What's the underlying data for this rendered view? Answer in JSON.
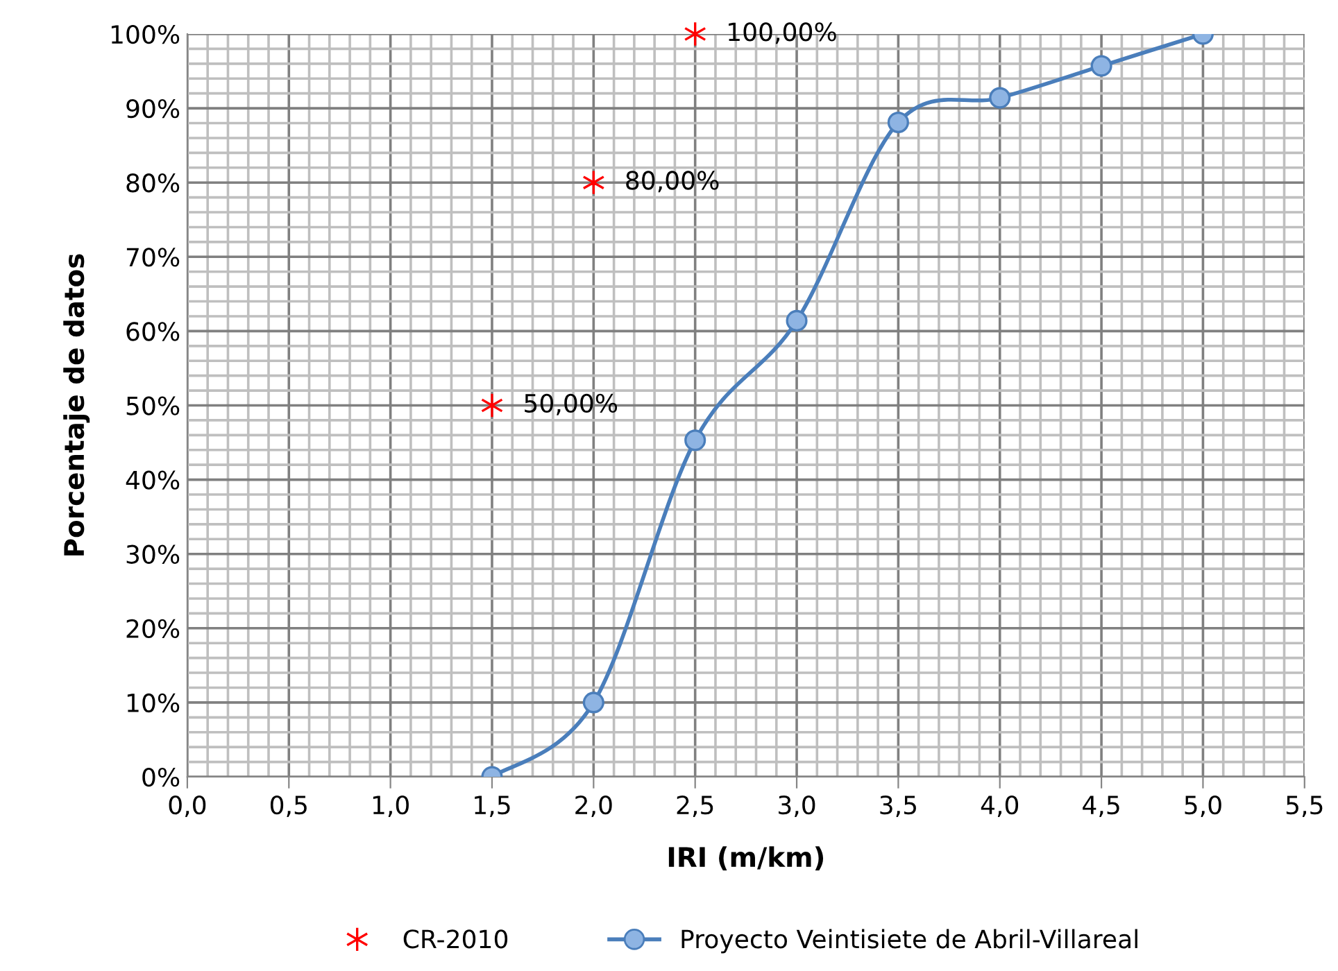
{
  "chart_data": {
    "type": "line",
    "xlabel": "IRI (m/km)",
    "ylabel": "Porcentaje de datos",
    "xlim": [
      0,
      5.5
    ],
    "xticks": [
      {
        "value": 0,
        "label": "0,0"
      },
      {
        "value": 0.5,
        "label": "0,5"
      },
      {
        "value": 1,
        "label": "1,0"
      },
      {
        "value": 1.5,
        "label": "1,5"
      },
      {
        "value": 2,
        "label": "2,0"
      },
      {
        "value": 2.5,
        "label": "2,5"
      },
      {
        "value": 3,
        "label": "3,0"
      },
      {
        "value": 3.5,
        "label": "3,5"
      },
      {
        "value": 4,
        "label": "4,0"
      },
      {
        "value": 4.5,
        "label": "4,5"
      },
      {
        "value": 5,
        "label": "5,0"
      },
      {
        "value": 5.5,
        "label": "5,5"
      }
    ],
    "ylim": [
      0,
      100
    ],
    "yticks": [
      {
        "value": 0,
        "label": "0%"
      },
      {
        "value": 10,
        "label": "10%"
      },
      {
        "value": 20,
        "label": "20%"
      },
      {
        "value": 30,
        "label": "30%"
      },
      {
        "value": 40,
        "label": "40%"
      },
      {
        "value": 50,
        "label": "50%"
      },
      {
        "value": 60,
        "label": "60%"
      },
      {
        "value": 70,
        "label": "70%"
      },
      {
        "value": 80,
        "label": "80%"
      },
      {
        "value": 90,
        "label": "90%"
      },
      {
        "value": 100,
        "label": "100%"
      }
    ],
    "grid": true,
    "legend": "bottom",
    "series": [
      {
        "name": "CR-2010",
        "type": "scatter",
        "marker": "cross",
        "color": "#ff0000",
        "x": [
          1.5,
          2.0,
          2.5
        ],
        "values": [
          50,
          80,
          100
        ],
        "value_labels": [
          "50,00%",
          "80,00%",
          "100,00%"
        ]
      },
      {
        "name": "Proyecto Veintisiete de Abril-Villareal",
        "marker": "circle",
        "color": "#4a7ebb",
        "x": [
          1.5,
          2.0,
          2.5,
          3.0,
          3.5,
          4.0,
          4.5,
          5.0
        ],
        "values": [
          0,
          10,
          45.3,
          61.4,
          88.1,
          91.4,
          95.7,
          100
        ]
      }
    ]
  }
}
